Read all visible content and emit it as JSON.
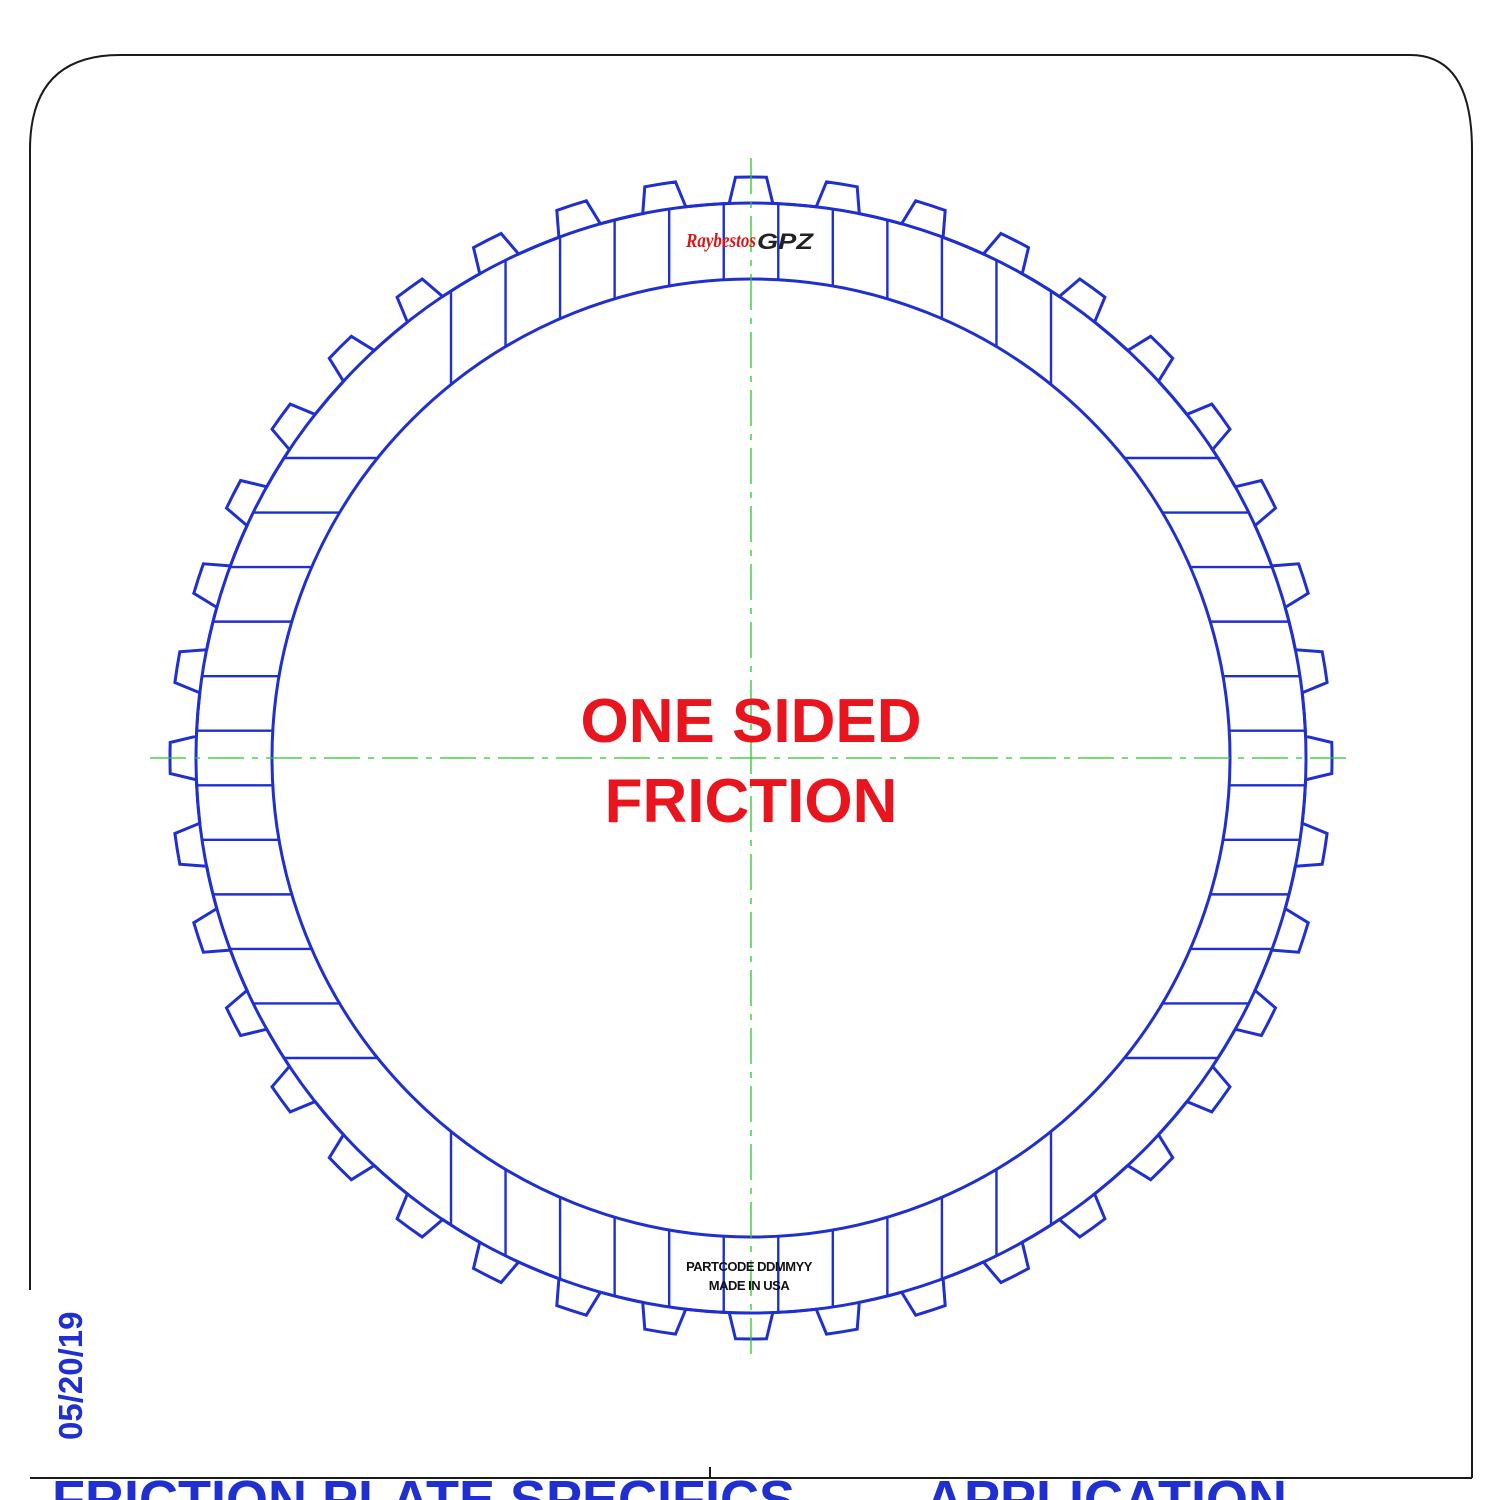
{
  "labels": {
    "line1": "ONE SIDED",
    "line2": "FRICTION",
    "part_marking_1": "PARTCODE DDMMYY",
    "part_marking_2": "MADE IN USA",
    "logo_red": "Raybestos",
    "logo_black": "GPZ",
    "date": "05/20/19",
    "footer_left": "FRICTION PLATE SPECIFICS",
    "footer_right": "APPLICATION"
  },
  "colors": {
    "outline": "#1f2fd0",
    "label": "#e8141e",
    "centerline": "#28c828"
  },
  "plate": {
    "external_teeth": 40,
    "friction_segments_per_quadrant": 12
  }
}
